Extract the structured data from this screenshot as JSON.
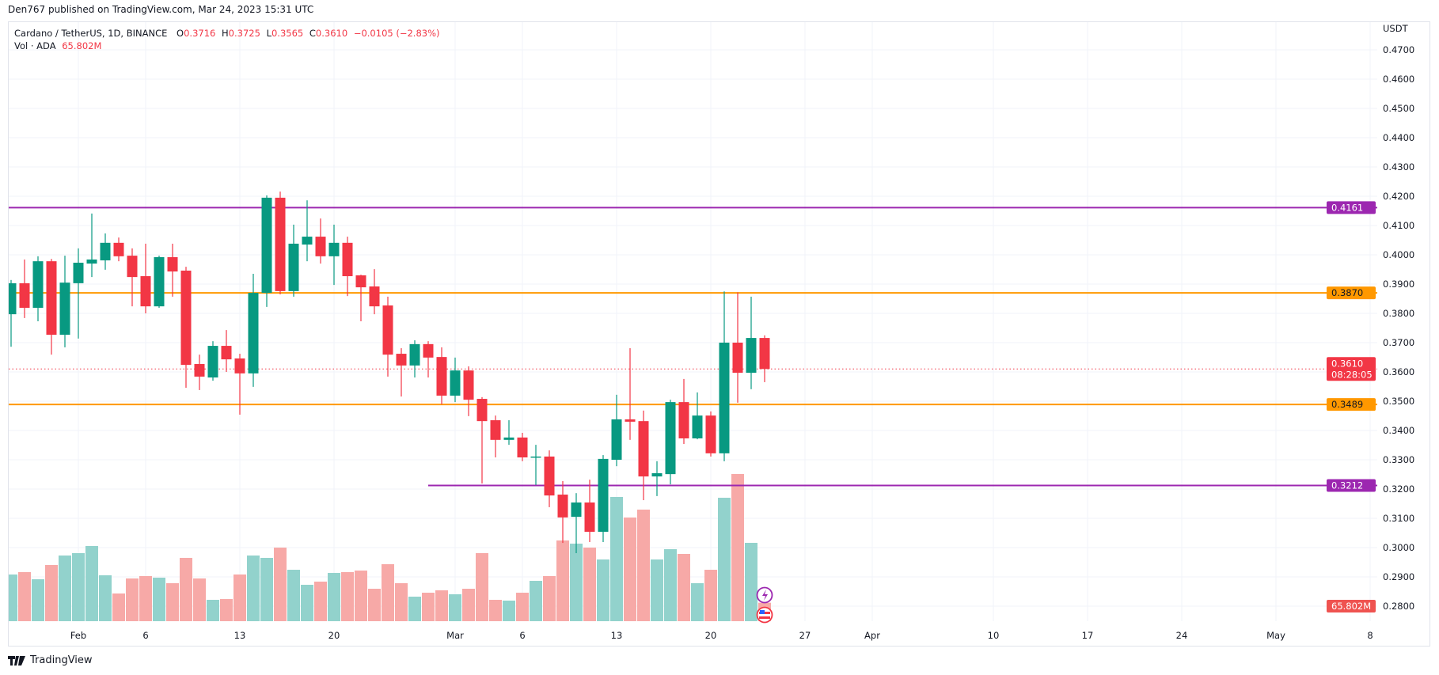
{
  "publish_line": "Den767 published on TradingView.com, Mar 24, 2023 15:31 UTC",
  "legend": {
    "symbol": "Cardano / TetherUS, 1D, BINANCE",
    "o_label": "O",
    "o": "0.3716",
    "h_label": "H",
    "h": "0.3725",
    "l_label": "L",
    "l": "0.3565",
    "c_label": "C",
    "c": "0.3610",
    "change": "−0.0105 (−2.83%)",
    "vol_label": "Vol · ADA",
    "vol": "65.802M"
  },
  "footer": {
    "brand": "TradingView"
  },
  "colors": {
    "up": "#089981",
    "down": "#f23645",
    "vol_up": "#92d2cc",
    "vol_down": "#f7a9a7",
    "purple": "#9c27b0",
    "orange": "#ff9800",
    "grid": "#f0f3fa"
  },
  "chart_data": {
    "type": "candlestick",
    "symbol": "ADA/USDT",
    "interval": "1D",
    "currency_label": "USDT",
    "ylim": [
      0.2775,
      0.4735
    ],
    "grid": true,
    "y_ticks": [
      "0.4700",
      "0.4600",
      "0.4500",
      "0.4400",
      "0.4300",
      "0.4200",
      "0.4100",
      "0.4000",
      "0.3900",
      "0.3800",
      "0.3700",
      "0.3600",
      "0.3500",
      "0.3400",
      "0.3300",
      "0.3200",
      "0.3100",
      "0.3000",
      "0.2900",
      "0.2800"
    ],
    "x_ticks": [
      {
        "label": "Feb",
        "date": "2023-02-01"
      },
      {
        "label": "6",
        "date": "2023-02-06"
      },
      {
        "label": "13",
        "date": "2023-02-13"
      },
      {
        "label": "20",
        "date": "2023-02-20"
      },
      {
        "label": "Mar",
        "date": "2023-03-01"
      },
      {
        "label": "6",
        "date": "2023-03-06"
      },
      {
        "label": "13",
        "date": "2023-03-13"
      },
      {
        "label": "20",
        "date": "2023-03-20"
      },
      {
        "label": "27",
        "date": "2023-03-27"
      },
      {
        "label": "Apr",
        "date": "2023-04-01"
      },
      {
        "label": "10",
        "date": "2023-04-10"
      },
      {
        "label": "17",
        "date": "2023-04-17"
      },
      {
        "label": "24",
        "date": "2023-04-24"
      },
      {
        "label": "May",
        "date": "2023-05-01"
      },
      {
        "label": "8",
        "date": "2023-05-08"
      }
    ],
    "levels": [
      {
        "price": 0.4161,
        "label": "0.4161",
        "color": "purple",
        "from": "2023-01-27"
      },
      {
        "price": 0.387,
        "label": "0.3870",
        "color": "orange",
        "from": "2023-01-27"
      },
      {
        "price": 0.3489,
        "label": "0.3489",
        "color": "orange",
        "from": "2023-01-27"
      },
      {
        "price": 0.3212,
        "label": "0.3212",
        "color": "purple",
        "from": "2023-02-27"
      }
    ],
    "last_price": {
      "price": 0.361,
      "label": "0.3610",
      "countdown": "08:28:05"
    },
    "volume_label": "65.802M",
    "volume_unit": "M",
    "candles": [
      {
        "d": "2023-01-27",
        "o": 0.3797,
        "h": 0.3914,
        "l": 0.3686,
        "c": 0.3903,
        "v": 148.6
      },
      {
        "d": "2023-01-28",
        "o": 0.3903,
        "h": 0.3984,
        "l": 0.3784,
        "c": 0.3819,
        "v": 155.6
      },
      {
        "d": "2023-01-29",
        "o": 0.3819,
        "h": 0.3995,
        "l": 0.3773,
        "c": 0.3978,
        "v": 134.7
      },
      {
        "d": "2023-01-30",
        "o": 0.3978,
        "h": 0.3986,
        "l": 0.3659,
        "c": 0.3727,
        "v": 176.5
      },
      {
        "d": "2023-01-31",
        "o": 0.3727,
        "h": 0.3997,
        "l": 0.3684,
        "c": 0.3905,
        "v": 204.3
      },
      {
        "d": "2023-02-01",
        "o": 0.3903,
        "h": 0.4022,
        "l": 0.3714,
        "c": 0.3973,
        "v": 211.3
      },
      {
        "d": "2023-02-02",
        "o": 0.397,
        "h": 0.4141,
        "l": 0.3924,
        "c": 0.3984,
        "v": 232.2
      },
      {
        "d": "2023-02-03",
        "o": 0.3981,
        "h": 0.4073,
        "l": 0.3949,
        "c": 0.4041,
        "v": 146.3
      },
      {
        "d": "2023-02-04",
        "o": 0.4041,
        "h": 0.4059,
        "l": 0.3978,
        "c": 0.3995,
        "v": 92.9
      },
      {
        "d": "2023-02-05",
        "o": 0.3997,
        "h": 0.4022,
        "l": 0.3824,
        "c": 0.3924,
        "v": 137.0
      },
      {
        "d": "2023-02-06",
        "o": 0.3927,
        "h": 0.4038,
        "l": 0.38,
        "c": 0.3824,
        "v": 144.0
      },
      {
        "d": "2023-02-07",
        "o": 0.3824,
        "h": 0.3997,
        "l": 0.3819,
        "c": 0.3992,
        "v": 139.3
      },
      {
        "d": "2023-02-08",
        "o": 0.3992,
        "h": 0.4038,
        "l": 0.3857,
        "c": 0.3943,
        "v": 123.1
      },
      {
        "d": "2023-02-09",
        "o": 0.3946,
        "h": 0.3959,
        "l": 0.3546,
        "c": 0.3624,
        "v": 197.4
      },
      {
        "d": "2023-02-10",
        "o": 0.3627,
        "h": 0.3659,
        "l": 0.3538,
        "c": 0.3584,
        "v": 137.0
      },
      {
        "d": "2023-02-11",
        "o": 0.3581,
        "h": 0.3705,
        "l": 0.357,
        "c": 0.3689,
        "v": 74.3
      },
      {
        "d": "2023-02-12",
        "o": 0.3689,
        "h": 0.3743,
        "l": 0.36,
        "c": 0.3643,
        "v": 76.6
      },
      {
        "d": "2023-02-13",
        "o": 0.3646,
        "h": 0.3662,
        "l": 0.3454,
        "c": 0.3595,
        "v": 148.6
      },
      {
        "d": "2023-02-14",
        "o": 0.3595,
        "h": 0.3935,
        "l": 0.3549,
        "c": 0.387,
        "v": 204.3
      },
      {
        "d": "2023-02-15",
        "o": 0.387,
        "h": 0.4203,
        "l": 0.3822,
        "c": 0.4195,
        "v": 197.4
      },
      {
        "d": "2023-02-16",
        "o": 0.4195,
        "h": 0.4216,
        "l": 0.3865,
        "c": 0.3876,
        "v": 227.6
      },
      {
        "d": "2023-02-17",
        "o": 0.3876,
        "h": 0.4103,
        "l": 0.3857,
        "c": 0.4038,
        "v": 162.5
      },
      {
        "d": "2023-02-18",
        "o": 0.4035,
        "h": 0.4186,
        "l": 0.3978,
        "c": 0.4062,
        "v": 118.4
      },
      {
        "d": "2023-02-19",
        "o": 0.4062,
        "h": 0.4124,
        "l": 0.397,
        "c": 0.3995,
        "v": 127.7
      },
      {
        "d": "2023-02-20",
        "o": 0.3995,
        "h": 0.4103,
        "l": 0.3897,
        "c": 0.4041,
        "v": 153.3
      },
      {
        "d": "2023-02-21",
        "o": 0.4041,
        "h": 0.4062,
        "l": 0.3859,
        "c": 0.3927,
        "v": 155.6
      },
      {
        "d": "2023-02-22",
        "o": 0.393,
        "h": 0.3932,
        "l": 0.3773,
        "c": 0.3889,
        "v": 160.2
      },
      {
        "d": "2023-02-23",
        "o": 0.3892,
        "h": 0.3951,
        "l": 0.3797,
        "c": 0.3824,
        "v": 106.8
      },
      {
        "d": "2023-02-24",
        "o": 0.3827,
        "h": 0.3857,
        "l": 0.3584,
        "c": 0.3659,
        "v": 178.8
      },
      {
        "d": "2023-02-25",
        "o": 0.3662,
        "h": 0.3681,
        "l": 0.3516,
        "c": 0.3622,
        "v": 123.1
      },
      {
        "d": "2023-02-26",
        "o": 0.3622,
        "h": 0.3708,
        "l": 0.3581,
        "c": 0.3695,
        "v": 83.6
      },
      {
        "d": "2023-02-27",
        "o": 0.3695,
        "h": 0.3705,
        "l": 0.3581,
        "c": 0.3649,
        "v": 95.2
      },
      {
        "d": "2023-02-28",
        "o": 0.3651,
        "h": 0.3684,
        "l": 0.3489,
        "c": 0.3519,
        "v": 102.2
      },
      {
        "d": "2023-03-01",
        "o": 0.3519,
        "h": 0.3649,
        "l": 0.3497,
        "c": 0.3605,
        "v": 90.6
      },
      {
        "d": "2023-03-02",
        "o": 0.3605,
        "h": 0.3619,
        "l": 0.3449,
        "c": 0.3505,
        "v": 106.8
      },
      {
        "d": "2023-03-03",
        "o": 0.3508,
        "h": 0.3514,
        "l": 0.3219,
        "c": 0.3432,
        "v": 211.3
      },
      {
        "d": "2023-03-04",
        "o": 0.3435,
        "h": 0.3451,
        "l": 0.3308,
        "c": 0.3368,
        "v": 74.3
      },
      {
        "d": "2023-03-05",
        "o": 0.3368,
        "h": 0.3435,
        "l": 0.3351,
        "c": 0.3376,
        "v": 72.0
      },
      {
        "d": "2023-03-06",
        "o": 0.3376,
        "h": 0.3392,
        "l": 0.3295,
        "c": 0.3308,
        "v": 95.2
      },
      {
        "d": "2023-03-07",
        "o": 0.3308,
        "h": 0.3351,
        "l": 0.3214,
        "c": 0.3311,
        "v": 130.0
      },
      {
        "d": "2023-03-08",
        "o": 0.3311,
        "h": 0.3332,
        "l": 0.3138,
        "c": 0.3178,
        "v": 144.0
      },
      {
        "d": "2023-03-09",
        "o": 0.3181,
        "h": 0.3227,
        "l": 0.3016,
        "c": 0.3103,
        "v": 248.5
      },
      {
        "d": "2023-03-10",
        "o": 0.3105,
        "h": 0.3186,
        "l": 0.2981,
        "c": 0.3154,
        "v": 239.2
      },
      {
        "d": "2023-03-11",
        "o": 0.3154,
        "h": 0.3232,
        "l": 0.3019,
        "c": 0.3054,
        "v": 227.6
      },
      {
        "d": "2023-03-12",
        "o": 0.3054,
        "h": 0.3316,
        "l": 0.3019,
        "c": 0.3303,
        "v": 192.7
      },
      {
        "d": "2023-03-13",
        "o": 0.33,
        "h": 0.3522,
        "l": 0.3278,
        "c": 0.3438,
        "v": 376.2
      },
      {
        "d": "2023-03-14",
        "o": 0.3438,
        "h": 0.3681,
        "l": 0.3368,
        "c": 0.343,
        "v": 315.8
      },
      {
        "d": "2023-03-15",
        "o": 0.3432,
        "h": 0.3468,
        "l": 0.3162,
        "c": 0.3243,
        "v": 339.0
      },
      {
        "d": "2023-03-16",
        "o": 0.3243,
        "h": 0.3295,
        "l": 0.3176,
        "c": 0.3254,
        "v": 192.7
      },
      {
        "d": "2023-03-17",
        "o": 0.3251,
        "h": 0.3505,
        "l": 0.3216,
        "c": 0.3497,
        "v": 222.9
      },
      {
        "d": "2023-03-18",
        "o": 0.3497,
        "h": 0.3576,
        "l": 0.3354,
        "c": 0.3373,
        "v": 209.0
      },
      {
        "d": "2023-03-19",
        "o": 0.3373,
        "h": 0.353,
        "l": 0.337,
        "c": 0.3451,
        "v": 123.1
      },
      {
        "d": "2023-03-20",
        "o": 0.3451,
        "h": 0.3465,
        "l": 0.3311,
        "c": 0.3322,
        "v": 162.5
      },
      {
        "d": "2023-03-21",
        "o": 0.3322,
        "h": 0.3875,
        "l": 0.3295,
        "c": 0.37,
        "v": 373.8
      },
      {
        "d": "2023-03-22",
        "o": 0.37,
        "h": 0.3872,
        "l": 0.3495,
        "c": 0.3597,
        "v": 443.5
      },
      {
        "d": "2023-03-23",
        "o": 0.3597,
        "h": 0.3857,
        "l": 0.3541,
        "c": 0.3716,
        "v": 241.5
      },
      {
        "d": "2023-03-24",
        "o": 0.3716,
        "h": 0.3725,
        "l": 0.3565,
        "c": 0.361,
        "v": 65.802
      }
    ],
    "event_icons": [
      "lightning-icon",
      "us-flag-icon"
    ]
  }
}
